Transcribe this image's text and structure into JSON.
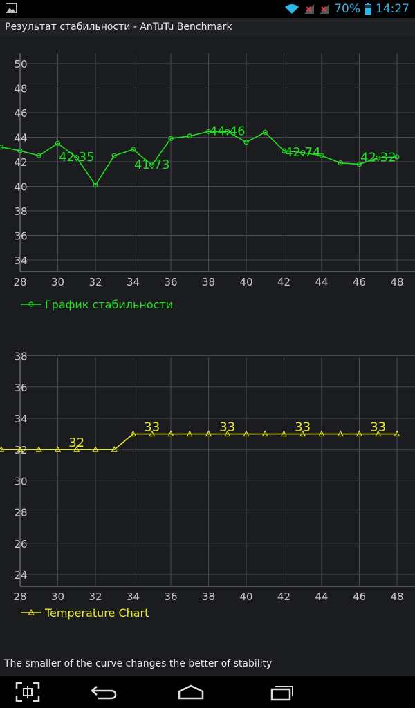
{
  "status_bar": {
    "battery_text": "70%",
    "time": "14:27",
    "icon_color": "#33b5e5",
    "icons": [
      "image-notification-icon",
      "wifi-icon",
      "signal-icon",
      "signal-icon",
      "battery-icon"
    ]
  },
  "app": {
    "title": "Результат стабильности - AnTuTu Benchmark"
  },
  "chart_data": [
    {
      "type": "line",
      "x": [
        27,
        28,
        29,
        30,
        31,
        32,
        33,
        34,
        35,
        36,
        37,
        38,
        39,
        40,
        41,
        42,
        43,
        44,
        45,
        46,
        47,
        48
      ],
      "series": [
        {
          "name": "График стабильности",
          "color": "#22dd22",
          "marker": "circle",
          "values": [
            43.2,
            42.9,
            42.5,
            43.5,
            42.35,
            40.1,
            42.5,
            43.0,
            41.73,
            43.9,
            44.1,
            44.46,
            44.46,
            43.6,
            44.4,
            42.9,
            42.74,
            42.5,
            41.9,
            41.8,
            42.32,
            42.4
          ]
        }
      ],
      "annotations": [
        {
          "x": 31,
          "text": "42.35"
        },
        {
          "x": 35,
          "text": "41.73"
        },
        {
          "x": 39,
          "text": "44.46"
        },
        {
          "x": 43,
          "text": "42.74"
        },
        {
          "x": 47,
          "text": "42.32"
        }
      ],
      "xlim": [
        27,
        48.3
      ],
      "ylim": [
        32.8,
        51
      ],
      "yticks": [
        "34",
        "36",
        "38",
        "40",
        "42",
        "44",
        "46",
        "48",
        "50"
      ],
      "xticks": [
        "28",
        "30",
        "32",
        "34",
        "36",
        "38",
        "40",
        "42",
        "44",
        "46",
        "48"
      ],
      "grid": true,
      "legend": "bottom-left"
    },
    {
      "type": "line",
      "x": [
        27,
        28,
        29,
        30,
        31,
        32,
        33,
        34,
        35,
        36,
        37,
        38,
        39,
        40,
        41,
        42,
        43,
        44,
        45,
        46,
        47,
        48
      ],
      "series": [
        {
          "name": "Temperature Chart",
          "color": "#e6e62e",
          "marker": "triangle",
          "values": [
            32,
            32,
            32,
            32,
            32,
            32,
            32,
            33,
            33,
            33,
            33,
            33,
            33,
            33,
            33,
            33,
            33,
            33,
            33,
            33,
            33,
            33
          ]
        }
      ],
      "annotations": [
        {
          "x": 31,
          "text": "32"
        },
        {
          "x": 35,
          "text": "33"
        },
        {
          "x": 39,
          "text": "33"
        },
        {
          "x": 43,
          "text": "33"
        },
        {
          "x": 47,
          "text": "33"
        }
      ],
      "xlim": [
        27,
        48.3
      ],
      "ylim": [
        23.2,
        38.3
      ],
      "yticks": [
        "24",
        "26",
        "28",
        "30",
        "32",
        "34",
        "36",
        "38"
      ],
      "xticks": [
        "28",
        "30",
        "32",
        "34",
        "36",
        "38",
        "40",
        "42",
        "44",
        "46",
        "48"
      ],
      "grid": true,
      "legend": "bottom-left"
    }
  ],
  "footer": {
    "note": "The smaller of the curve changes the better of stability"
  },
  "nav_bar": {
    "icons": [
      "screenshot-icon",
      "back-icon",
      "home-icon",
      "recent-apps-icon"
    ]
  }
}
